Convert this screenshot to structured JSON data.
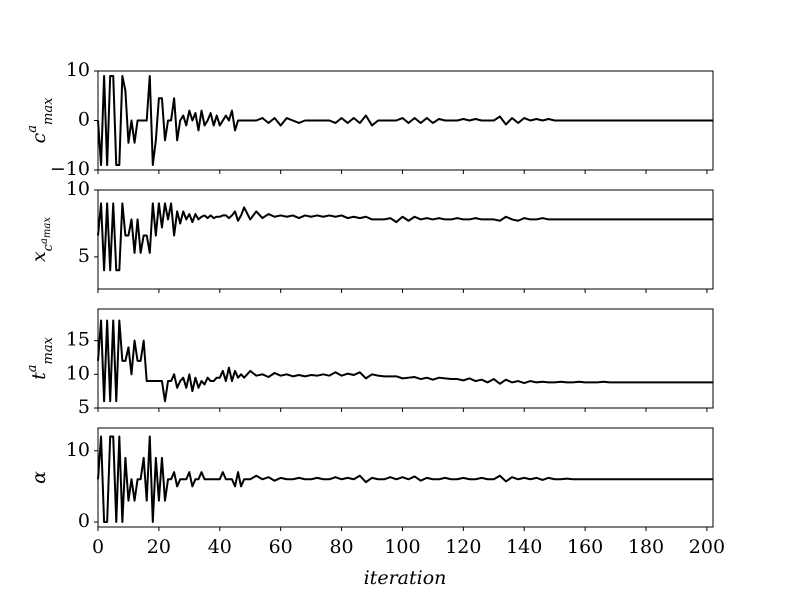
{
  "chart_data": {
    "type": "line",
    "xlabel": "iteration",
    "color": "#000000",
    "xlim": [
      0,
      202
    ],
    "xticks": [
      0,
      20,
      40,
      60,
      80,
      100,
      120,
      140,
      160,
      180,
      200
    ],
    "x": [
      0,
      1,
      2,
      3,
      4,
      5,
      6,
      7,
      8,
      9,
      10,
      11,
      12,
      13,
      14,
      15,
      16,
      17,
      18,
      19,
      20,
      21,
      22,
      23,
      24,
      25,
      26,
      27,
      28,
      29,
      30,
      31,
      32,
      33,
      34,
      35,
      36,
      37,
      38,
      39,
      40,
      41,
      42,
      43,
      44,
      45,
      46,
      47,
      48,
      50,
      52,
      54,
      56,
      58,
      60,
      62,
      64,
      66,
      68,
      70,
      72,
      74,
      76,
      78,
      80,
      82,
      84,
      86,
      88,
      90,
      92,
      94,
      96,
      98,
      100,
      102,
      104,
      106,
      108,
      110,
      112,
      114,
      116,
      118,
      120,
      122,
      124,
      126,
      128,
      130,
      132,
      134,
      136,
      138,
      140,
      142,
      144,
      146,
      148,
      150,
      152,
      154,
      156,
      158,
      160,
      162,
      164,
      166,
      168,
      170,
      172,
      174,
      176,
      178,
      180,
      182,
      184,
      186,
      188,
      190,
      192,
      194,
      196,
      198,
      200,
      202
    ],
    "panels": [
      {
        "ylabel": [
          {
            "t": "c"
          },
          {
            "t": "a",
            "s": "sup"
          },
          {
            "t": "max",
            "s": "sub"
          }
        ],
        "ylim": [
          -10,
          10
        ],
        "yticks": [
          {
            "value": -10,
            "label": "−10"
          },
          0,
          10
        ],
        "values": [
          0,
          -9,
          9,
          -9,
          9,
          9,
          -9,
          -9,
          9,
          6,
          -4.5,
          0,
          -4.5,
          0,
          0,
          0,
          0,
          9,
          -9,
          -4,
          4.5,
          4.5,
          -4,
          0,
          0,
          4.5,
          -4,
          0,
          1,
          -1,
          2,
          0,
          1.5,
          -2,
          2,
          -1,
          0,
          1.5,
          -1,
          1,
          -1,
          0,
          1,
          0,
          2,
          -2,
          0,
          0,
          0,
          0,
          0,
          0.5,
          -0.5,
          0.5,
          -1,
          0.5,
          0,
          -0.5,
          0,
          0,
          0,
          0,
          0,
          -0.5,
          0.5,
          -0.5,
          0.5,
          -0.5,
          1,
          -1,
          0,
          0,
          0,
          0,
          0.5,
          -0.5,
          0.5,
          -0.5,
          0.5,
          -0.5,
          0.3,
          0,
          0,
          0,
          0.3,
          0,
          0.3,
          0,
          0,
          0,
          0.8,
          -0.8,
          0.5,
          -0.5,
          0.5,
          0,
          0.3,
          0,
          0.3,
          0,
          0,
          0,
          0,
          0,
          0,
          0,
          0,
          0,
          0,
          0,
          0,
          0,
          0,
          0,
          0,
          0,
          0,
          0,
          0,
          0,
          0,
          0,
          0,
          0,
          0,
          0
        ]
      },
      {
        "ylabel": [
          {
            "t": "x"
          },
          {
            "t": "c",
            "s": "sub"
          },
          {
            "t": "a",
            "s": "subsup"
          },
          {
            "t": "max",
            "s": "subsub"
          }
        ],
        "ylim": [
          2.6,
          10
        ],
        "yticks": [
          5,
          10
        ],
        "values": [
          6.6,
          9,
          4,
          9,
          4,
          9,
          4,
          4,
          9,
          6.6,
          6.6,
          7.8,
          5.3,
          7.8,
          5.3,
          6.6,
          6.6,
          5.3,
          9,
          6.6,
          9,
          7.2,
          9,
          7.8,
          9,
          6.6,
          8.4,
          7.5,
          8.4,
          7.8,
          8.2,
          7.6,
          8.2,
          7.8,
          8,
          8.1,
          7.9,
          8.1,
          7.9,
          8,
          8,
          8.1,
          8.1,
          7.9,
          8.1,
          8.4,
          7.7,
          8.1,
          8.7,
          7.8,
          8.4,
          7.9,
          8.2,
          8,
          8.1,
          8,
          8.1,
          7.9,
          8.1,
          8,
          8.1,
          8,
          8.1,
          8,
          8.1,
          7.9,
          8,
          7.9,
          8,
          7.8,
          7.8,
          7.8,
          7.9,
          7.6,
          8,
          7.7,
          8,
          7.8,
          7.9,
          7.8,
          7.9,
          7.8,
          7.8,
          7.9,
          7.8,
          7.8,
          7.9,
          7.8,
          7.8,
          7.8,
          7.7,
          8,
          7.8,
          7.7,
          7.9,
          7.8,
          7.8,
          7.9,
          7.8,
          7.8,
          7.8,
          7.8,
          7.8,
          7.8,
          7.8,
          7.8,
          7.8,
          7.8,
          7.8,
          7.8,
          7.8,
          7.8,
          7.8,
          7.8,
          7.8,
          7.8,
          7.8,
          7.8,
          7.8,
          7.8,
          7.8,
          7.8,
          7.8,
          7.8,
          7.8,
          7.8
        ]
      },
      {
        "ylabel": [
          {
            "t": "t"
          },
          {
            "t": "a",
            "s": "sup"
          },
          {
            "t": "max",
            "s": "sub"
          }
        ],
        "ylim": [
          5,
          19.7
        ],
        "yticks": [
          5,
          10,
          15
        ],
        "values": [
          12,
          18,
          6,
          18,
          6,
          18,
          6,
          18,
          12,
          12,
          14,
          10,
          15,
          12,
          12,
          15,
          9,
          9,
          9,
          9,
          9,
          9,
          6,
          9,
          9,
          10,
          8,
          9,
          9.5,
          8,
          10,
          7.5,
          9.5,
          8,
          9,
          8.5,
          9.5,
          9,
          9,
          9.5,
          9.5,
          10.5,
          9,
          11,
          9,
          10.5,
          9.5,
          10,
          9.5,
          10.5,
          9.8,
          10,
          9.6,
          10.2,
          9.8,
          10,
          9.7,
          9.9,
          9.7,
          9.9,
          9.8,
          10,
          9.8,
          10.3,
          9.8,
          10.1,
          9.9,
          10.3,
          9.4,
          10,
          9.8,
          9.7,
          9.7,
          9.7,
          9.4,
          9.5,
          9.6,
          9.3,
          9.5,
          9.2,
          9.5,
          9.4,
          9.3,
          9.3,
          9.1,
          9.4,
          9,
          9.2,
          8.8,
          9.3,
          8.6,
          9.2,
          8.8,
          9,
          8.7,
          9,
          8.8,
          8.9,
          8.8,
          8.8,
          8.9,
          8.8,
          8.8,
          8.9,
          8.8,
          8.8,
          8.8,
          8.9,
          8.8,
          8.8,
          8.8,
          8.8,
          8.8,
          8.8,
          8.8,
          8.8,
          8.8,
          8.8,
          8.8,
          8.8,
          8.8,
          8.8,
          8.8,
          8.8,
          8.8,
          8.8
        ]
      },
      {
        "ylabel": [
          {
            "t": "α"
          }
        ],
        "ylim": [
          -0.7,
          13.2
        ],
        "yticks": [
          0,
          10
        ],
        "values": [
          6,
          12,
          0,
          0,
          12,
          12,
          0,
          12,
          0,
          9,
          3,
          6,
          3,
          6,
          6,
          9,
          3,
          12,
          0,
          9,
          3,
          9,
          3,
          6,
          6,
          7,
          5,
          6,
          6,
          6,
          7,
          5,
          6,
          6,
          7,
          6,
          6,
          6,
          6,
          6,
          6,
          7,
          6,
          6,
          6,
          5,
          7,
          5,
          6,
          6,
          6.5,
          6,
          6.3,
          5.8,
          6.2,
          6,
          6,
          6.2,
          6,
          6,
          6.2,
          6,
          6,
          6.3,
          6,
          6.2,
          6,
          6.5,
          5.6,
          6.2,
          6,
          6,
          6.3,
          6,
          6.3,
          6,
          6.4,
          5.8,
          6.2,
          6,
          6,
          6.2,
          6,
          6,
          6.2,
          6,
          6,
          6.2,
          6,
          6,
          6.5,
          5.7,
          6.3,
          6,
          6.2,
          6,
          6.2,
          5.9,
          6.2,
          6,
          6,
          6.1,
          6,
          6,
          6,
          6,
          6,
          6,
          6,
          6,
          6,
          6,
          6,
          6,
          6,
          6,
          6,
          6,
          6,
          6,
          6,
          6,
          6,
          6,
          6,
          6
        ]
      }
    ]
  }
}
